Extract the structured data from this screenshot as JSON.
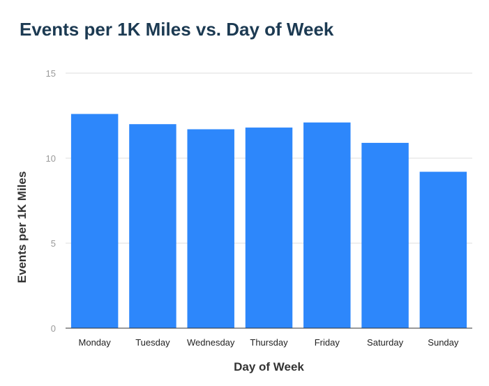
{
  "chart_data": {
    "type": "bar",
    "title": "Events per 1K Miles vs. Day of Week",
    "xlabel": "Day of Week",
    "ylabel": "Events per 1K Miles",
    "categories": [
      "Monday",
      "Tuesday",
      "Wednesday",
      "Thursday",
      "Friday",
      "Saturday",
      "Sunday"
    ],
    "values": [
      12.6,
      12.0,
      11.7,
      11.8,
      12.1,
      10.9,
      9.2
    ],
    "ylim": [
      0,
      15
    ],
    "yticks": [
      "0",
      "5",
      "10",
      "15"
    ],
    "grid": true,
    "bar_color": "#2d87fb",
    "title_color": "#1c3a52"
  }
}
